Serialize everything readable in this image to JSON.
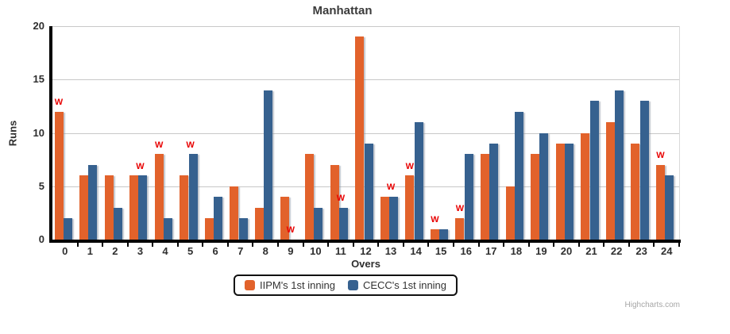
{
  "title": "Manhattan",
  "credits": "Highcharts.com",
  "colors": {
    "iipm": "#e2622b",
    "cecc": "#36618f",
    "wicket": "#e80000",
    "grid": "#c8c8c8",
    "axis": "#000000"
  },
  "legend": {
    "items": [
      {
        "label": "IIPM's 1st inning",
        "color": "#e2622b"
      },
      {
        "label": "CECC's 1st inning",
        "color": "#36618f"
      }
    ]
  },
  "chart_data": {
    "type": "bar",
    "title": "Manhattan",
    "xlabel": "Overs",
    "ylabel": "Runs",
    "ylim": [
      0,
      20
    ],
    "yticks": [
      0,
      5,
      10,
      15,
      20
    ],
    "grid": "horizontal",
    "legend_position": "bottom",
    "categories": [
      "0",
      "1",
      "2",
      "3",
      "4",
      "5",
      "6",
      "7",
      "8",
      "9",
      "10",
      "11",
      "12",
      "13",
      "14",
      "15",
      "16",
      "17",
      "18",
      "19",
      "20",
      "21",
      "22",
      "23",
      "24"
    ],
    "series": [
      {
        "name": "IIPM's 1st inning",
        "color": "#e2622b",
        "values": [
          12,
          6,
          6,
          6,
          8,
          6,
          2,
          5,
          3,
          4,
          8,
          7,
          19,
          4,
          6,
          1,
          2,
          8,
          5,
          8,
          9,
          10,
          11,
          9,
          7
        ]
      },
      {
        "name": "CECC's 1st inning",
        "color": "#36618f",
        "values": [
          2,
          7,
          3,
          6,
          2,
          8,
          4,
          2,
          14,
          0,
          3,
          3,
          9,
          4,
          11,
          1,
          8,
          9,
          12,
          10,
          9,
          13,
          14,
          13,
          6
        ]
      }
    ],
    "wickets": {
      "marker": "W",
      "color": "#e80000",
      "points": [
        {
          "over": 0,
          "y": 12.5,
          "align": "left"
        },
        {
          "over": 3,
          "y": 6.5,
          "align": "center"
        },
        {
          "over": 4,
          "y": 8.5,
          "align": "left"
        },
        {
          "over": 5,
          "y": 8.5,
          "align": "center"
        },
        {
          "over": 9,
          "y": 0.5,
          "align": "center"
        },
        {
          "over": 11,
          "y": 3.5,
          "align": "center"
        },
        {
          "over": 13,
          "y": 4.5,
          "align": "center"
        },
        {
          "over": 14,
          "y": 6.5,
          "align": "left"
        },
        {
          "over": 15,
          "y": 1.5,
          "align": "left"
        },
        {
          "over": 16,
          "y": 2.5,
          "align": "left"
        },
        {
          "over": 24,
          "y": 7.5,
          "align": "left"
        }
      ]
    }
  }
}
